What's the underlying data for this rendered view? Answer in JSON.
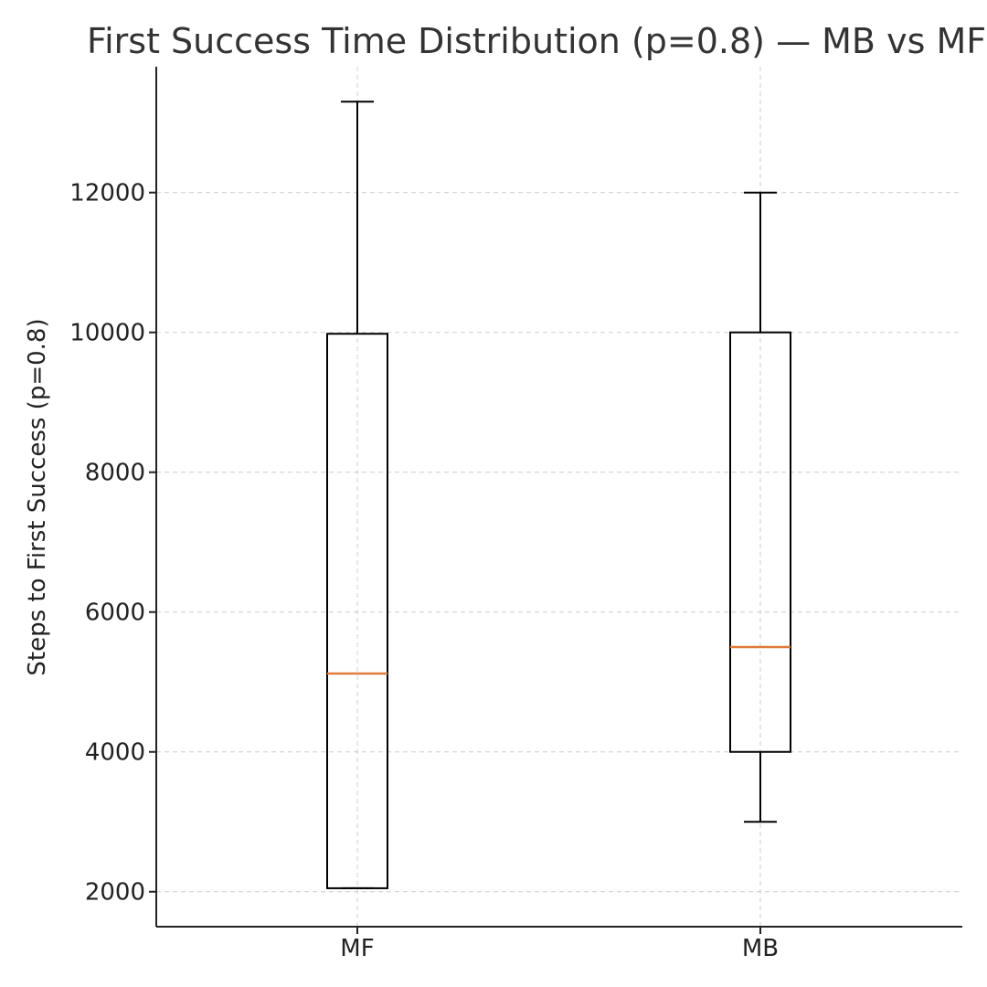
{
  "chart_data": {
    "type": "box",
    "title": "First Success Time Distribution (p=0.8) — MB vs MF",
    "xlabel": "",
    "ylabel": "Steps to First Success (p=0.8)",
    "ylim": [
      1500,
      13800
    ],
    "yticks": [
      2000,
      4000,
      6000,
      8000,
      10000,
      12000
    ],
    "grid": true,
    "categories": [
      "MF",
      "MB"
    ],
    "boxes": [
      {
        "label": "MF",
        "whisker_low": 2050,
        "q1": 2050,
        "median": 5120,
        "q3": 9980,
        "whisker_high": 13300
      },
      {
        "label": "MB",
        "whisker_low": 3000,
        "q1": 4000,
        "median": 5500,
        "q3": 10000,
        "whisker_high": 12000
      }
    ],
    "colors": {
      "box": "#000000",
      "median": "#e07b39",
      "grid": "#cccccc",
      "axis": "#222222",
      "title": "#333333"
    }
  }
}
